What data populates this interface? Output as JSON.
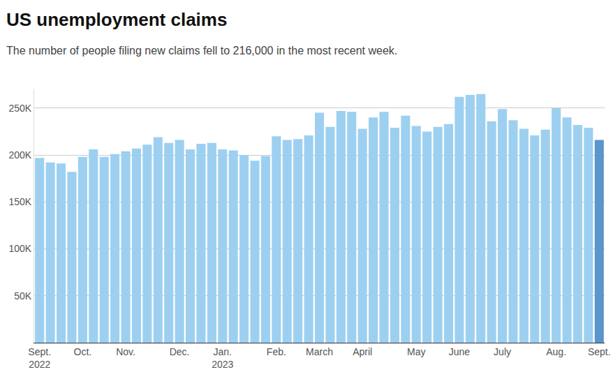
{
  "chart_data": {
    "type": "bar",
    "title": "US unemployment claims",
    "subtitle": "The number of people filing new claims fell to 216,000 in the most recent week.",
    "categories": [
      "Sept.\n2022",
      null,
      null,
      null,
      "Oct.",
      null,
      null,
      null,
      "Nov.",
      null,
      null,
      null,
      null,
      "Dec.",
      null,
      null,
      null,
      "Jan.\n2023",
      null,
      null,
      null,
      null,
      "Feb.",
      null,
      null,
      null,
      "March",
      null,
      null,
      null,
      "April",
      null,
      null,
      null,
      null,
      "May",
      null,
      null,
      null,
      "June",
      null,
      null,
      null,
      "July",
      null,
      null,
      null,
      null,
      "Aug.",
      null,
      null,
      null,
      "Sept."
    ],
    "values": [
      197000,
      192000,
      191000,
      182000,
      198000,
      206000,
      198000,
      201000,
      204000,
      207000,
      211000,
      219000,
      213000,
      216000,
      206000,
      212000,
      213000,
      206000,
      205000,
      200000,
      194000,
      199000,
      220000,
      216000,
      217000,
      221000,
      245000,
      230000,
      247000,
      246000,
      228000,
      240000,
      246000,
      229000,
      242000,
      231000,
      225000,
      230000,
      233000,
      262000,
      264000,
      265000,
      236000,
      249000,
      237000,
      228000,
      221000,
      227000,
      250000,
      240000,
      232000,
      229000,
      216000
    ],
    "colors": [
      "#9dd0f0",
      "#9dd0f0",
      "#9dd0f0",
      "#9dd0f0",
      "#9dd0f0",
      "#9dd0f0",
      "#9dd0f0",
      "#9dd0f0",
      "#9dd0f0",
      "#9dd0f0",
      "#9dd0f0",
      "#9dd0f0",
      "#9dd0f0",
      "#9dd0f0",
      "#9dd0f0",
      "#9dd0f0",
      "#9dd0f0",
      "#9dd0f0",
      "#9dd0f0",
      "#9dd0f0",
      "#9dd0f0",
      "#9dd0f0",
      "#9dd0f0",
      "#9dd0f0",
      "#9dd0f0",
      "#9dd0f0",
      "#9dd0f0",
      "#9dd0f0",
      "#9dd0f0",
      "#9dd0f0",
      "#9dd0f0",
      "#9dd0f0",
      "#9dd0f0",
      "#9dd0f0",
      "#9dd0f0",
      "#9dd0f0",
      "#9dd0f0",
      "#9dd0f0",
      "#9dd0f0",
      "#9dd0f0",
      "#9dd0f0",
      "#9dd0f0",
      "#9dd0f0",
      "#9dd0f0",
      "#9dd0f0",
      "#9dd0f0",
      "#9dd0f0",
      "#9dd0f0",
      "#9dd0f0",
      "#9dd0f0",
      "#9dd0f0",
      "#9dd0f0",
      "#5b95cc"
    ],
    "ylim": [
      0,
      270000
    ],
    "yticks": [
      {
        "value": 50000,
        "label": "50K"
      },
      {
        "value": 100000,
        "label": "100K"
      },
      {
        "value": 150000,
        "label": "150K"
      },
      {
        "value": 200000,
        "label": "200K"
      },
      {
        "value": 250000,
        "label": "250K"
      }
    ],
    "grid": true
  }
}
